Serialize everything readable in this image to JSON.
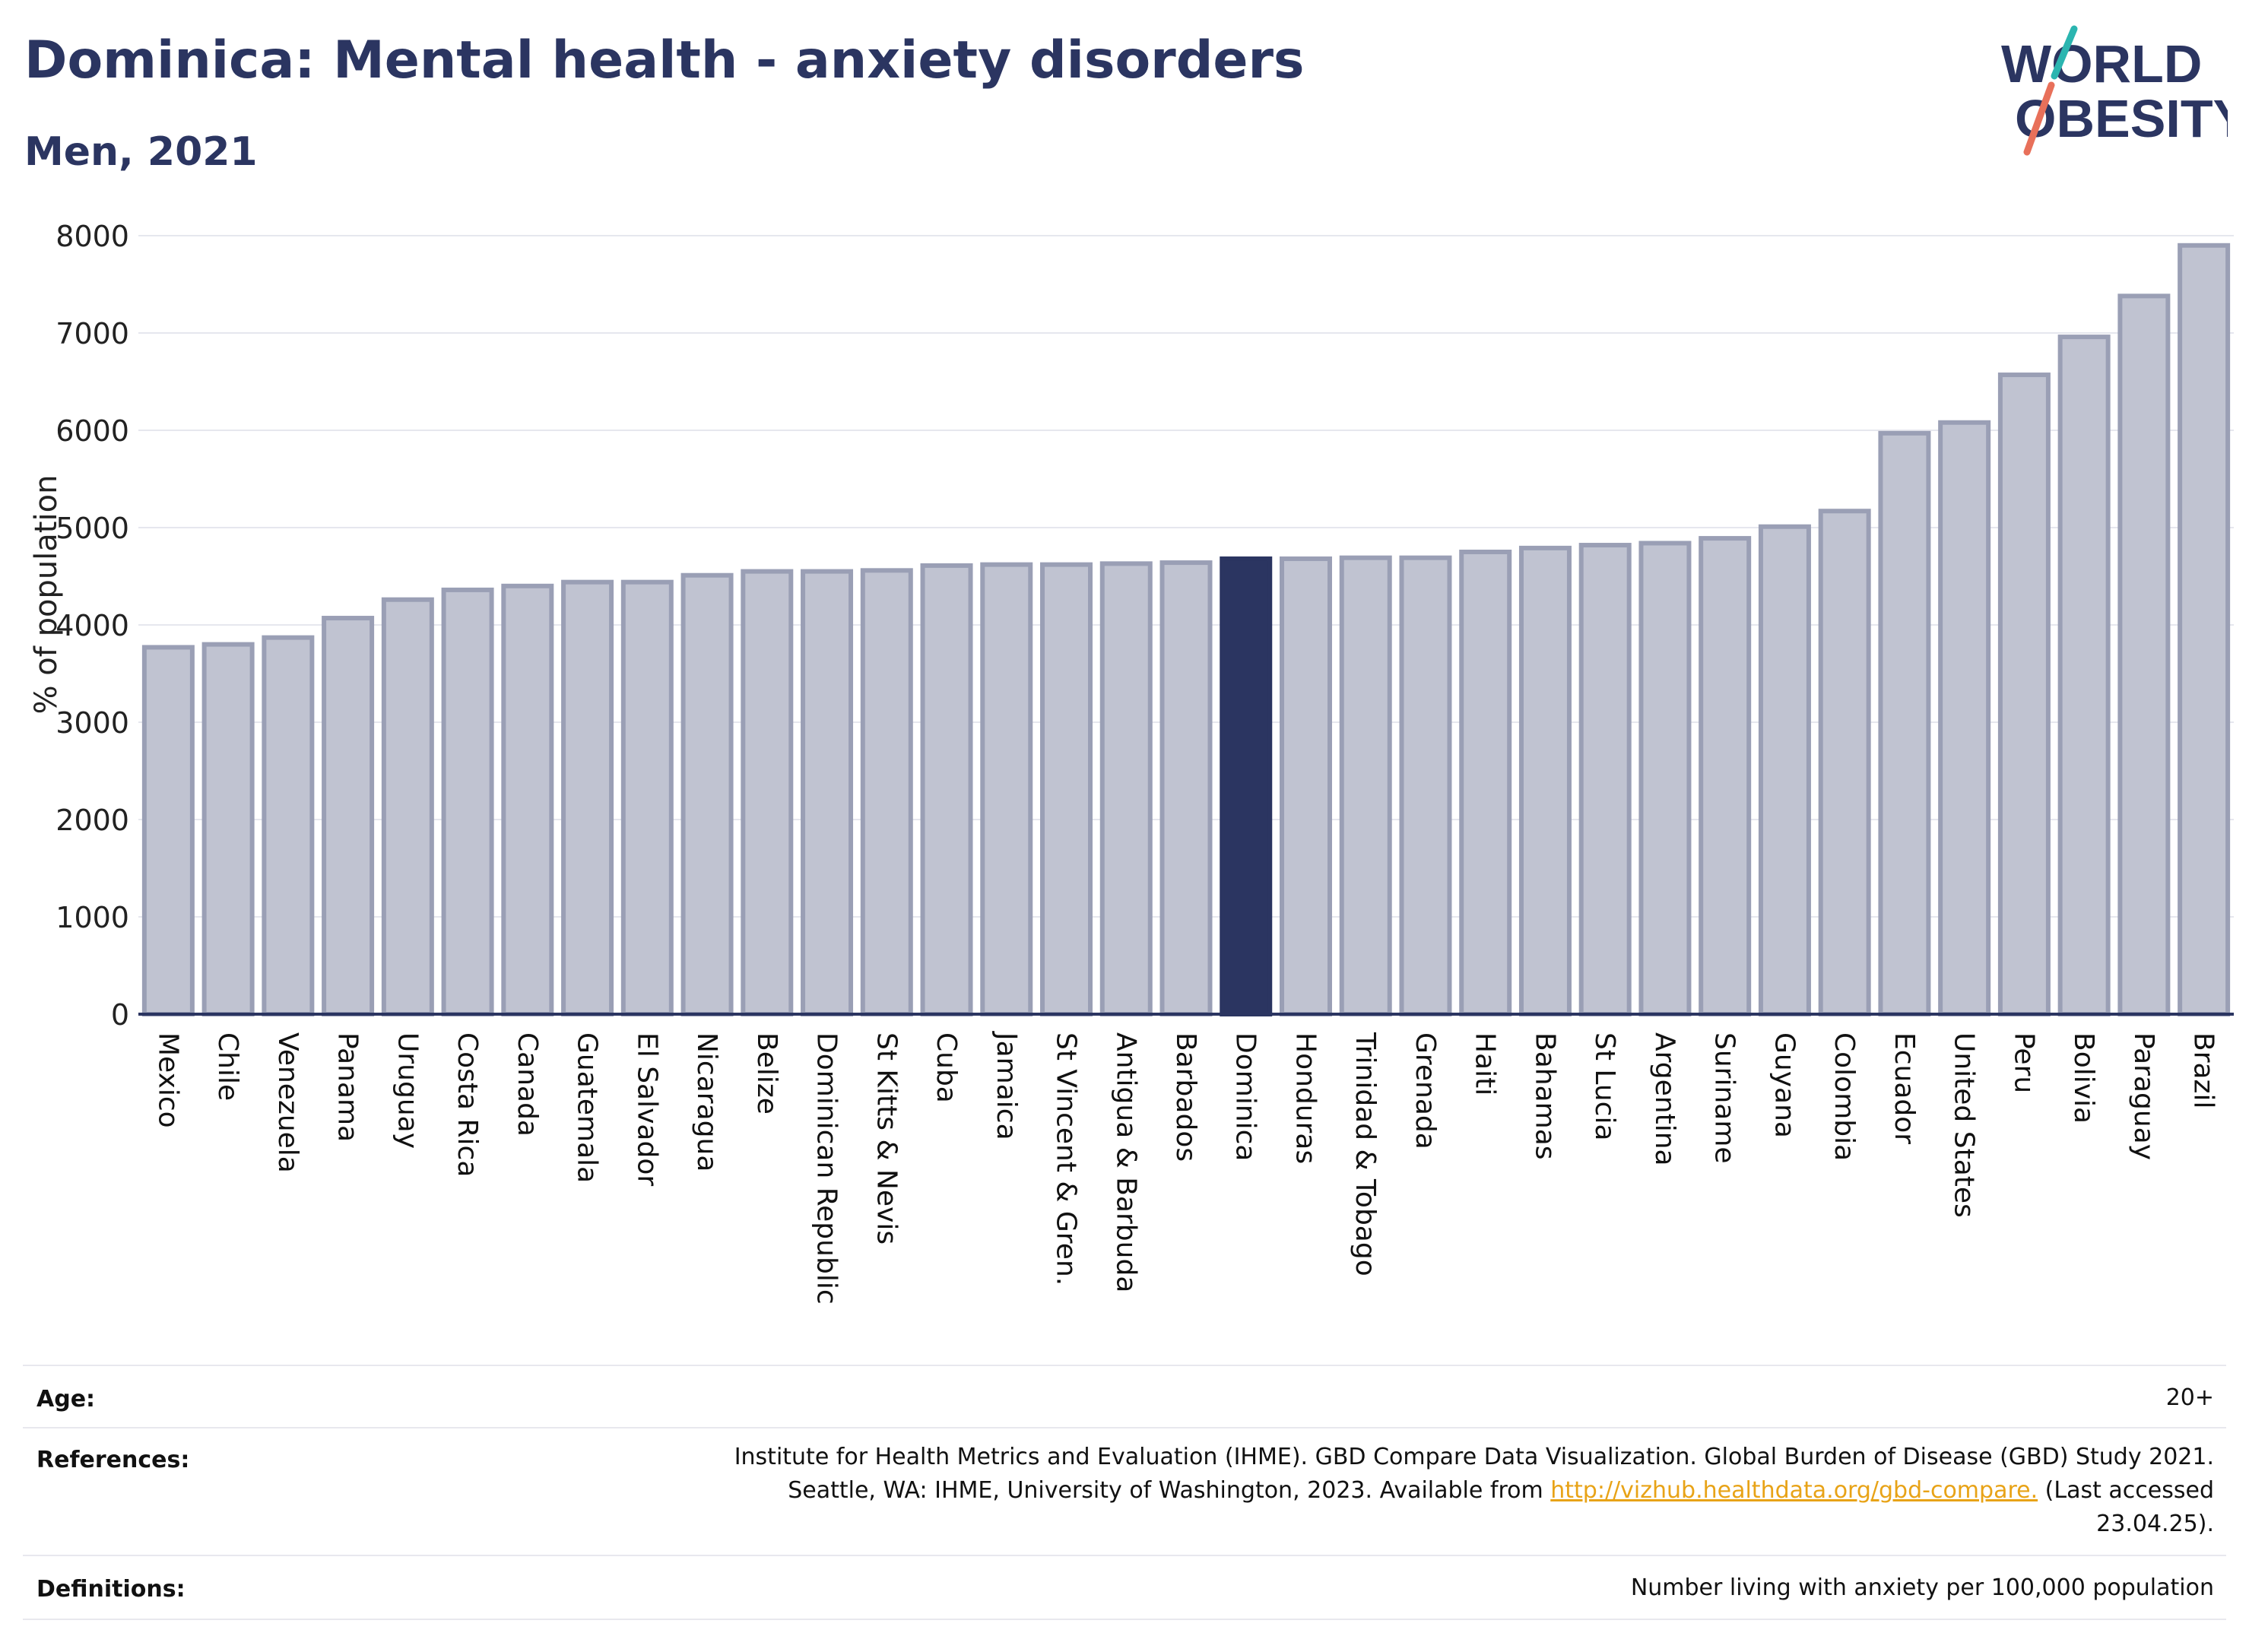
{
  "title": "Dominica: Mental health - anxiety disorders",
  "subtitle": "Men, 2021",
  "logo": {
    "line1": "WORLD",
    "line2": "OBESITY",
    "accent_teal": "#2bb5b0",
    "accent_coral": "#e8705a"
  },
  "colors": {
    "bar": "#c0c3d1",
    "bar_stroke": "#9a9fb5",
    "highlight": "#2b3561",
    "axis": "#2b3561",
    "grid": "#e6e7ee"
  },
  "chart_data": {
    "type": "bar",
    "ylabel": "% of population",
    "ylim": [
      0,
      8000
    ],
    "yticks": [
      0,
      1000,
      2000,
      3000,
      4000,
      5000,
      6000,
      7000,
      8000
    ],
    "grid": true,
    "highlight": "Dominica",
    "categories": [
      "Mexico",
      "Chile",
      "Venezuela",
      "Panama",
      "Uruguay",
      "Costa Rica",
      "Canada",
      "Guatemala",
      "El Salvador",
      "Nicaragua",
      "Belize",
      "Dominican Republic",
      "St Kitts & Nevis",
      "Cuba",
      "Jamaica",
      "St Vincent & Gren.",
      "Antigua & Barbuda",
      "Barbados",
      "Dominica",
      "Honduras",
      "Trinidad & Tobago",
      "Grenada",
      "Haiti",
      "Bahamas",
      "St Lucia",
      "Argentina",
      "Suriname",
      "Guyana",
      "Colombia",
      "Ecuador",
      "United States",
      "Peru",
      "Bolivia",
      "Paraguay",
      "Brazil"
    ],
    "values": [
      3770,
      3800,
      3870,
      4070,
      4260,
      4360,
      4400,
      4440,
      4440,
      4510,
      4550,
      4550,
      4560,
      4610,
      4620,
      4620,
      4630,
      4640,
      4680,
      4680,
      4690,
      4690,
      4750,
      4790,
      4820,
      4840,
      4890,
      5010,
      5170,
      5970,
      6080,
      6570,
      6960,
      7380,
      7900
    ]
  },
  "info": {
    "age_label": "Age:",
    "age_value": "20+",
    "references_label": "References:",
    "references_line1": "Institute for Health Metrics and Evaluation (IHME). GBD Compare Data Visualization. Global Burden of Disease (GBD) Study 2021.",
    "references_line2_pre": "Seattle, WA: IHME, University of Washington, 2023. Available from",
    "references_link": "http://vizhub.healthdata.org/gbd-compare.",
    "references_line2_post": "(Last accessed",
    "references_line3": "23.04.25).",
    "definitions_label": "Definitions:",
    "definitions_value": "Number living with anxiety per 100,000 population"
  }
}
